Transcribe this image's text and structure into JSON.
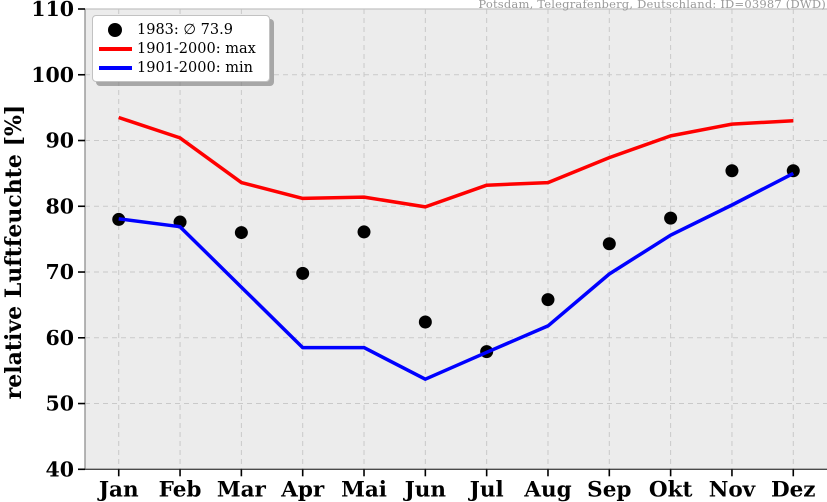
{
  "header": {
    "station_label": "Potsdam, Telegrafenberg, Deutschland: ID=03987 (DWD)"
  },
  "legend": {
    "items": [
      {
        "label": "1983: ∅ 73.9",
        "marker": "dot",
        "color": "#000000"
      },
      {
        "label": "1901-2000: max",
        "marker": "line",
        "color": "#ff0000"
      },
      {
        "label": "1901-2000: min",
        "marker": "line",
        "color": "#0000ff"
      }
    ]
  },
  "chart_data": {
    "type": "line",
    "title": "Potsdam, Telegrafenberg, Deutschland: ID=03987 (DWD)",
    "ylabel": "relative Luftfeuchte [%]",
    "xlabel": "",
    "categories": [
      "Jan",
      "Feb",
      "Mar",
      "Apr",
      "Mai",
      "Jun",
      "Jul",
      "Aug",
      "Sep",
      "Okt",
      "Nov",
      "Dez"
    ],
    "series": [
      {
        "name": "1983: ∅ 73.9",
        "type": "scatter",
        "color": "#000000",
        "mean": 73.9,
        "values": [
          78.0,
          77.6,
          76.0,
          69.8,
          76.1,
          62.4,
          57.9,
          65.8,
          74.3,
          78.2,
          85.4,
          85.4
        ]
      },
      {
        "name": "1901-2000: max",
        "type": "line",
        "color": "#ff0000",
        "values": [
          93.5,
          90.4,
          83.6,
          81.2,
          81.4,
          79.9,
          83.2,
          83.6,
          87.4,
          90.7,
          92.5,
          93.0
        ]
      },
      {
        "name": "1901-2000: min",
        "type": "line",
        "color": "#0000ff",
        "values": [
          78.1,
          76.9,
          67.7,
          58.5,
          58.5,
          53.7,
          57.8,
          61.8,
          69.7,
          75.6,
          80.2,
          85.0
        ]
      }
    ],
    "ylim": [
      40,
      110
    ],
    "yticks": [
      40,
      50,
      60,
      70,
      80,
      90,
      100,
      110
    ],
    "grid": true,
    "grid_style": "dashed",
    "legend_position": "upper-left",
    "colors": {
      "figure_background": "#ffffff",
      "plot_background": "#ececec",
      "grid": "#c9c9c9",
      "spine_top": "#c2c2c2",
      "spine_left": "#8f8f8f",
      "spine_bottom": "#4a4a4a",
      "tick": "#000000",
      "station_text": "#9a9a9a"
    }
  }
}
